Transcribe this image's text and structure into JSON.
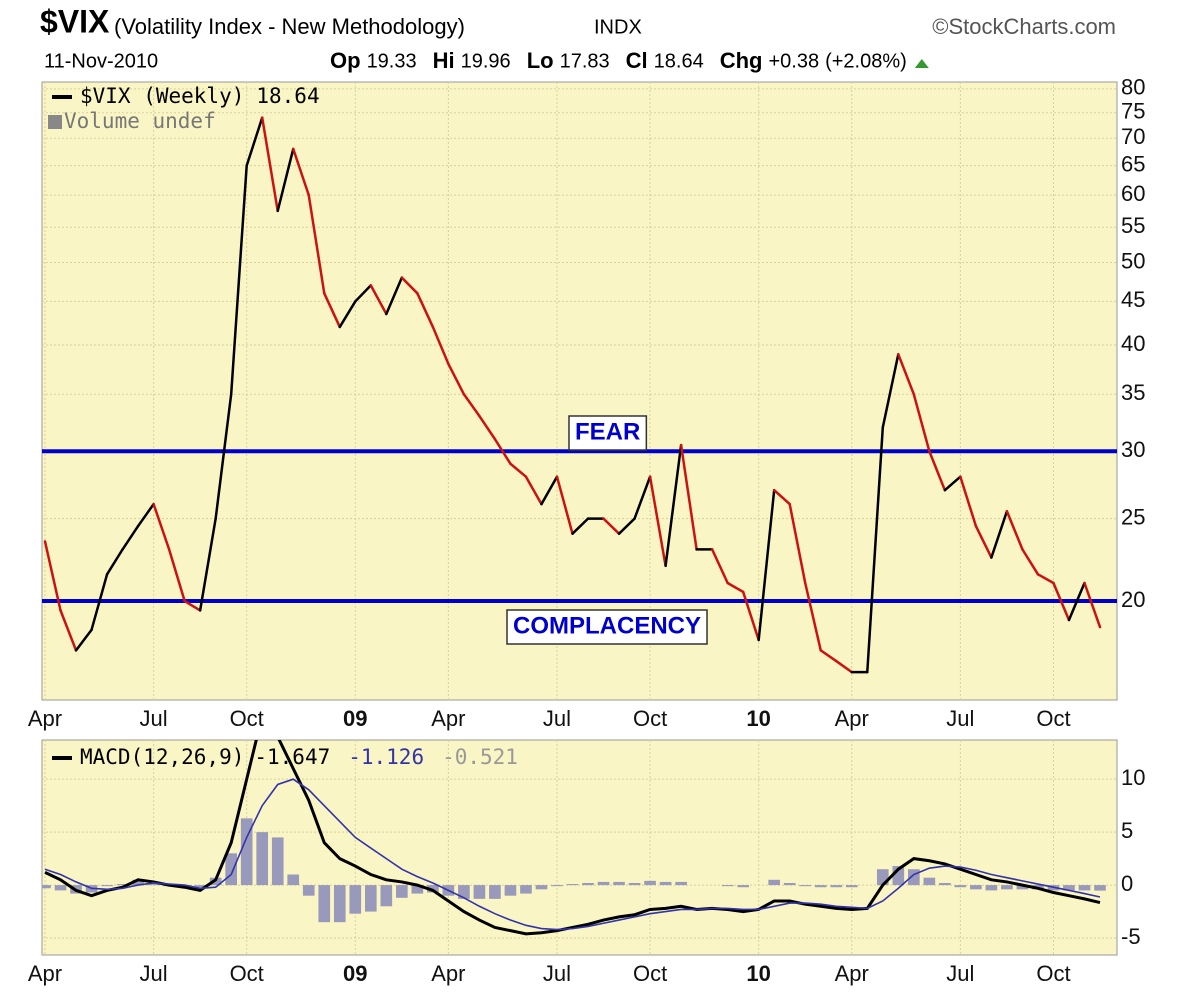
{
  "header": {
    "title": "$VIX",
    "subtitle": "(Volatility Index - New Methodology)",
    "exchange": "INDX",
    "source": "©StockCharts.com",
    "date": "11-Nov-2010",
    "quote": [
      {
        "label": "Op",
        "value": 19.33
      },
      {
        "label": "Hi",
        "value": 19.96
      },
      {
        "label": "Lo",
        "value": 17.83
      },
      {
        "label": "Cl",
        "value": 18.64
      },
      {
        "label": "Chg",
        "value": "+0.38"
      }
    ],
    "change_pct": "(+2.08%)"
  },
  "chart_data": [
    {
      "type": "line",
      "log_scale": true,
      "grid": true,
      "categories": [
        "Apr",
        null,
        null,
        null,
        null,
        null,
        null,
        "Jul",
        null,
        null,
        null,
        null,
        null,
        "Oct",
        null,
        null,
        null,
        null,
        null,
        null,
        "09",
        null,
        null,
        null,
        null,
        null,
        "Apr",
        null,
        null,
        null,
        null,
        null,
        null,
        "Jul",
        null,
        null,
        null,
        null,
        null,
        "Oct",
        null,
        null,
        null,
        null,
        null,
        null,
        "10",
        null,
        null,
        null,
        null,
        null,
        "Apr",
        null,
        null,
        null,
        null,
        null,
        null,
        "Jul",
        null,
        null,
        null,
        null,
        null,
        "Oct",
        null,
        null,
        null
      ],
      "series": [
        {
          "name": "$VIX (Weekly)",
          "up_color": "#000000",
          "down_color": "#cc1111",
          "values": [
            23.5,
            19.5,
            17.5,
            18.5,
            21.5,
            23,
            24.5,
            26,
            23,
            20,
            19.5,
            25,
            35,
            65,
            74,
            57.5,
            68,
            60,
            46,
            42,
            45,
            47,
            43.5,
            48,
            46,
            42,
            38,
            35,
            33,
            31,
            29,
            28,
            26,
            28,
            24,
            25,
            25,
            24,
            25,
            28,
            22,
            30.5,
            23,
            23,
            21,
            20.5,
            18,
            27,
            26,
            21,
            17.5,
            17,
            16.5,
            16.5,
            32,
            39,
            35,
            30,
            27,
            28,
            24.5,
            22.5,
            25.5,
            23,
            21.5,
            21,
            19,
            21,
            18.64
          ]
        }
      ],
      "volume_label": "Volume undef",
      "hlines": [
        {
          "value": 30,
          "label": "FEAR"
        },
        {
          "value": 20,
          "label": "COMPLACENCY"
        }
      ],
      "hline_color": "#0000cc",
      "ylim": [
        15.3,
        81.5
      ],
      "yticks": [
        20,
        25,
        30,
        35,
        40,
        45,
        50,
        55,
        60,
        65,
        70,
        75,
        80
      ]
    },
    {
      "type": "macd",
      "grid": true,
      "categories": [
        "Apr",
        null,
        null,
        null,
        null,
        null,
        null,
        "Jul",
        null,
        null,
        null,
        null,
        null,
        "Oct",
        null,
        null,
        null,
        null,
        null,
        null,
        "09",
        null,
        null,
        null,
        null,
        null,
        "Apr",
        null,
        null,
        null,
        null,
        null,
        null,
        "Jul",
        null,
        null,
        null,
        null,
        null,
        "Oct",
        null,
        null,
        null,
        null,
        null,
        null,
        "10",
        null,
        null,
        null,
        null,
        null,
        "Apr",
        null,
        null,
        null,
        null,
        null,
        null,
        "Jul",
        null,
        null,
        null,
        null,
        null,
        "Oct",
        null,
        null,
        null
      ],
      "series": [
        {
          "name": "MACD(12,26,9)",
          "color": "#000000",
          "last": -1.647,
          "values": [
            1.2,
            0.5,
            -0.5,
            -1.0,
            -0.5,
            -0.2,
            0.5,
            0.3,
            0,
            -0.2,
            -0.5,
            0.5,
            4,
            10,
            16,
            14,
            11,
            8,
            4,
            2.5,
            1.8,
            1.0,
            0.5,
            0.3,
            0,
            -0.5,
            -1.5,
            -2.5,
            -3.3,
            -4,
            -4.3,
            -4.6,
            -4.5,
            -4.3,
            -4.0,
            -3.7,
            -3.3,
            -3.0,
            -2.8,
            -2.3,
            -2.2,
            -2.0,
            -2.3,
            -2.2,
            -2.3,
            -2.5,
            -2.3,
            -1.5,
            -1.5,
            -1.8,
            -2.0,
            -2.2,
            -2.3,
            -2.2,
            0,
            1.5,
            2.5,
            2.3,
            2.0,
            1.5,
            1.0,
            0.5,
            0.3,
            0,
            -0.3,
            -0.7,
            -1.0,
            -1.3,
            -1.65
          ]
        },
        {
          "color": "#3333aa",
          "last": -1.126,
          "values": [
            1.5,
            1.0,
            0.3,
            -0.3,
            -0.4,
            -0.3,
            0,
            0.2,
            0.1,
            0,
            -0.3,
            -0.2,
            1,
            4.5,
            7.5,
            9.5,
            10,
            9,
            7.5,
            6,
            4.5,
            3.5,
            2.5,
            1.5,
            0.8,
            0.2,
            -0.5,
            -1.2,
            -2,
            -2.7,
            -3.3,
            -3.8,
            -4.1,
            -4.2,
            -4.1,
            -3.9,
            -3.6,
            -3.3,
            -3.0,
            -2.7,
            -2.5,
            -2.3,
            -2.3,
            -2.2,
            -2.2,
            -2.3,
            -2.3,
            -2.0,
            -1.7,
            -1.7,
            -1.8,
            -2.0,
            -2.1,
            -2.2,
            -1.5,
            -0.3,
            1.0,
            1.6,
            1.8,
            1.7,
            1.4,
            1.0,
            0.7,
            0.4,
            0.1,
            -0.2,
            -0.5,
            -0.8,
            -1.126
          ]
        },
        {
          "color": "#9999bb",
          "last": -0.521,
          "style": "bar",
          "values": [
            -0.3,
            -0.5,
            -0.8,
            -0.7,
            -0.1,
            0.1,
            0.5,
            0.1,
            -0.1,
            -0.2,
            -0.2,
            0.7,
            3,
            6.3,
            5,
            4.5,
            1,
            -1,
            -3.5,
            -3.5,
            -2.7,
            -2.5,
            -2,
            -1.2,
            -0.8,
            -0.7,
            -1.0,
            -1.3,
            -1.3,
            -1.3,
            -1.0,
            -0.8,
            -0.4,
            -0.1,
            0.1,
            0.2,
            0.3,
            0.3,
            0.2,
            0.4,
            0.3,
            0.3,
            0,
            0,
            -0.1,
            -0.2,
            0,
            0.5,
            0.2,
            -0.1,
            -0.2,
            -0.2,
            -0.2,
            0,
            1.5,
            1.8,
            1.5,
            0.7,
            0.2,
            -0.2,
            -0.4,
            -0.5,
            -0.4,
            -0.4,
            -0.4,
            -0.5,
            -0.5,
            -0.5,
            -0.521
          ]
        }
      ],
      "ylim": [
        -6.6,
        13.7
      ],
      "yticks": [
        -5,
        0,
        5,
        10
      ]
    }
  ]
}
